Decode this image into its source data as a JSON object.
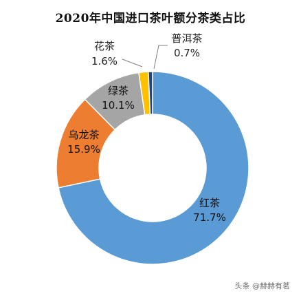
{
  "chart_data": {
    "type": "pie",
    "title": "2020年中国进口茶叶额分茶类占比",
    "slices": [
      {
        "name": "红茶",
        "label": "71.7%",
        "value": 71.7,
        "color": "#5B9BD5"
      },
      {
        "name": "乌龙茶",
        "label": "15.9%",
        "value": 15.9,
        "color": "#ED7D31"
      },
      {
        "name": "绿茶",
        "label": "10.1%",
        "value": 10.1,
        "color": "#A5A5A5"
      },
      {
        "name": "花茶",
        "label": "1.6%",
        "value": 1.6,
        "color": "#FFC000"
      },
      {
        "name": "普洱茶",
        "label": "0.7%",
        "value": 0.7,
        "color": "#264478"
      }
    ]
  },
  "watermark": "头条 @赫赫有茗"
}
